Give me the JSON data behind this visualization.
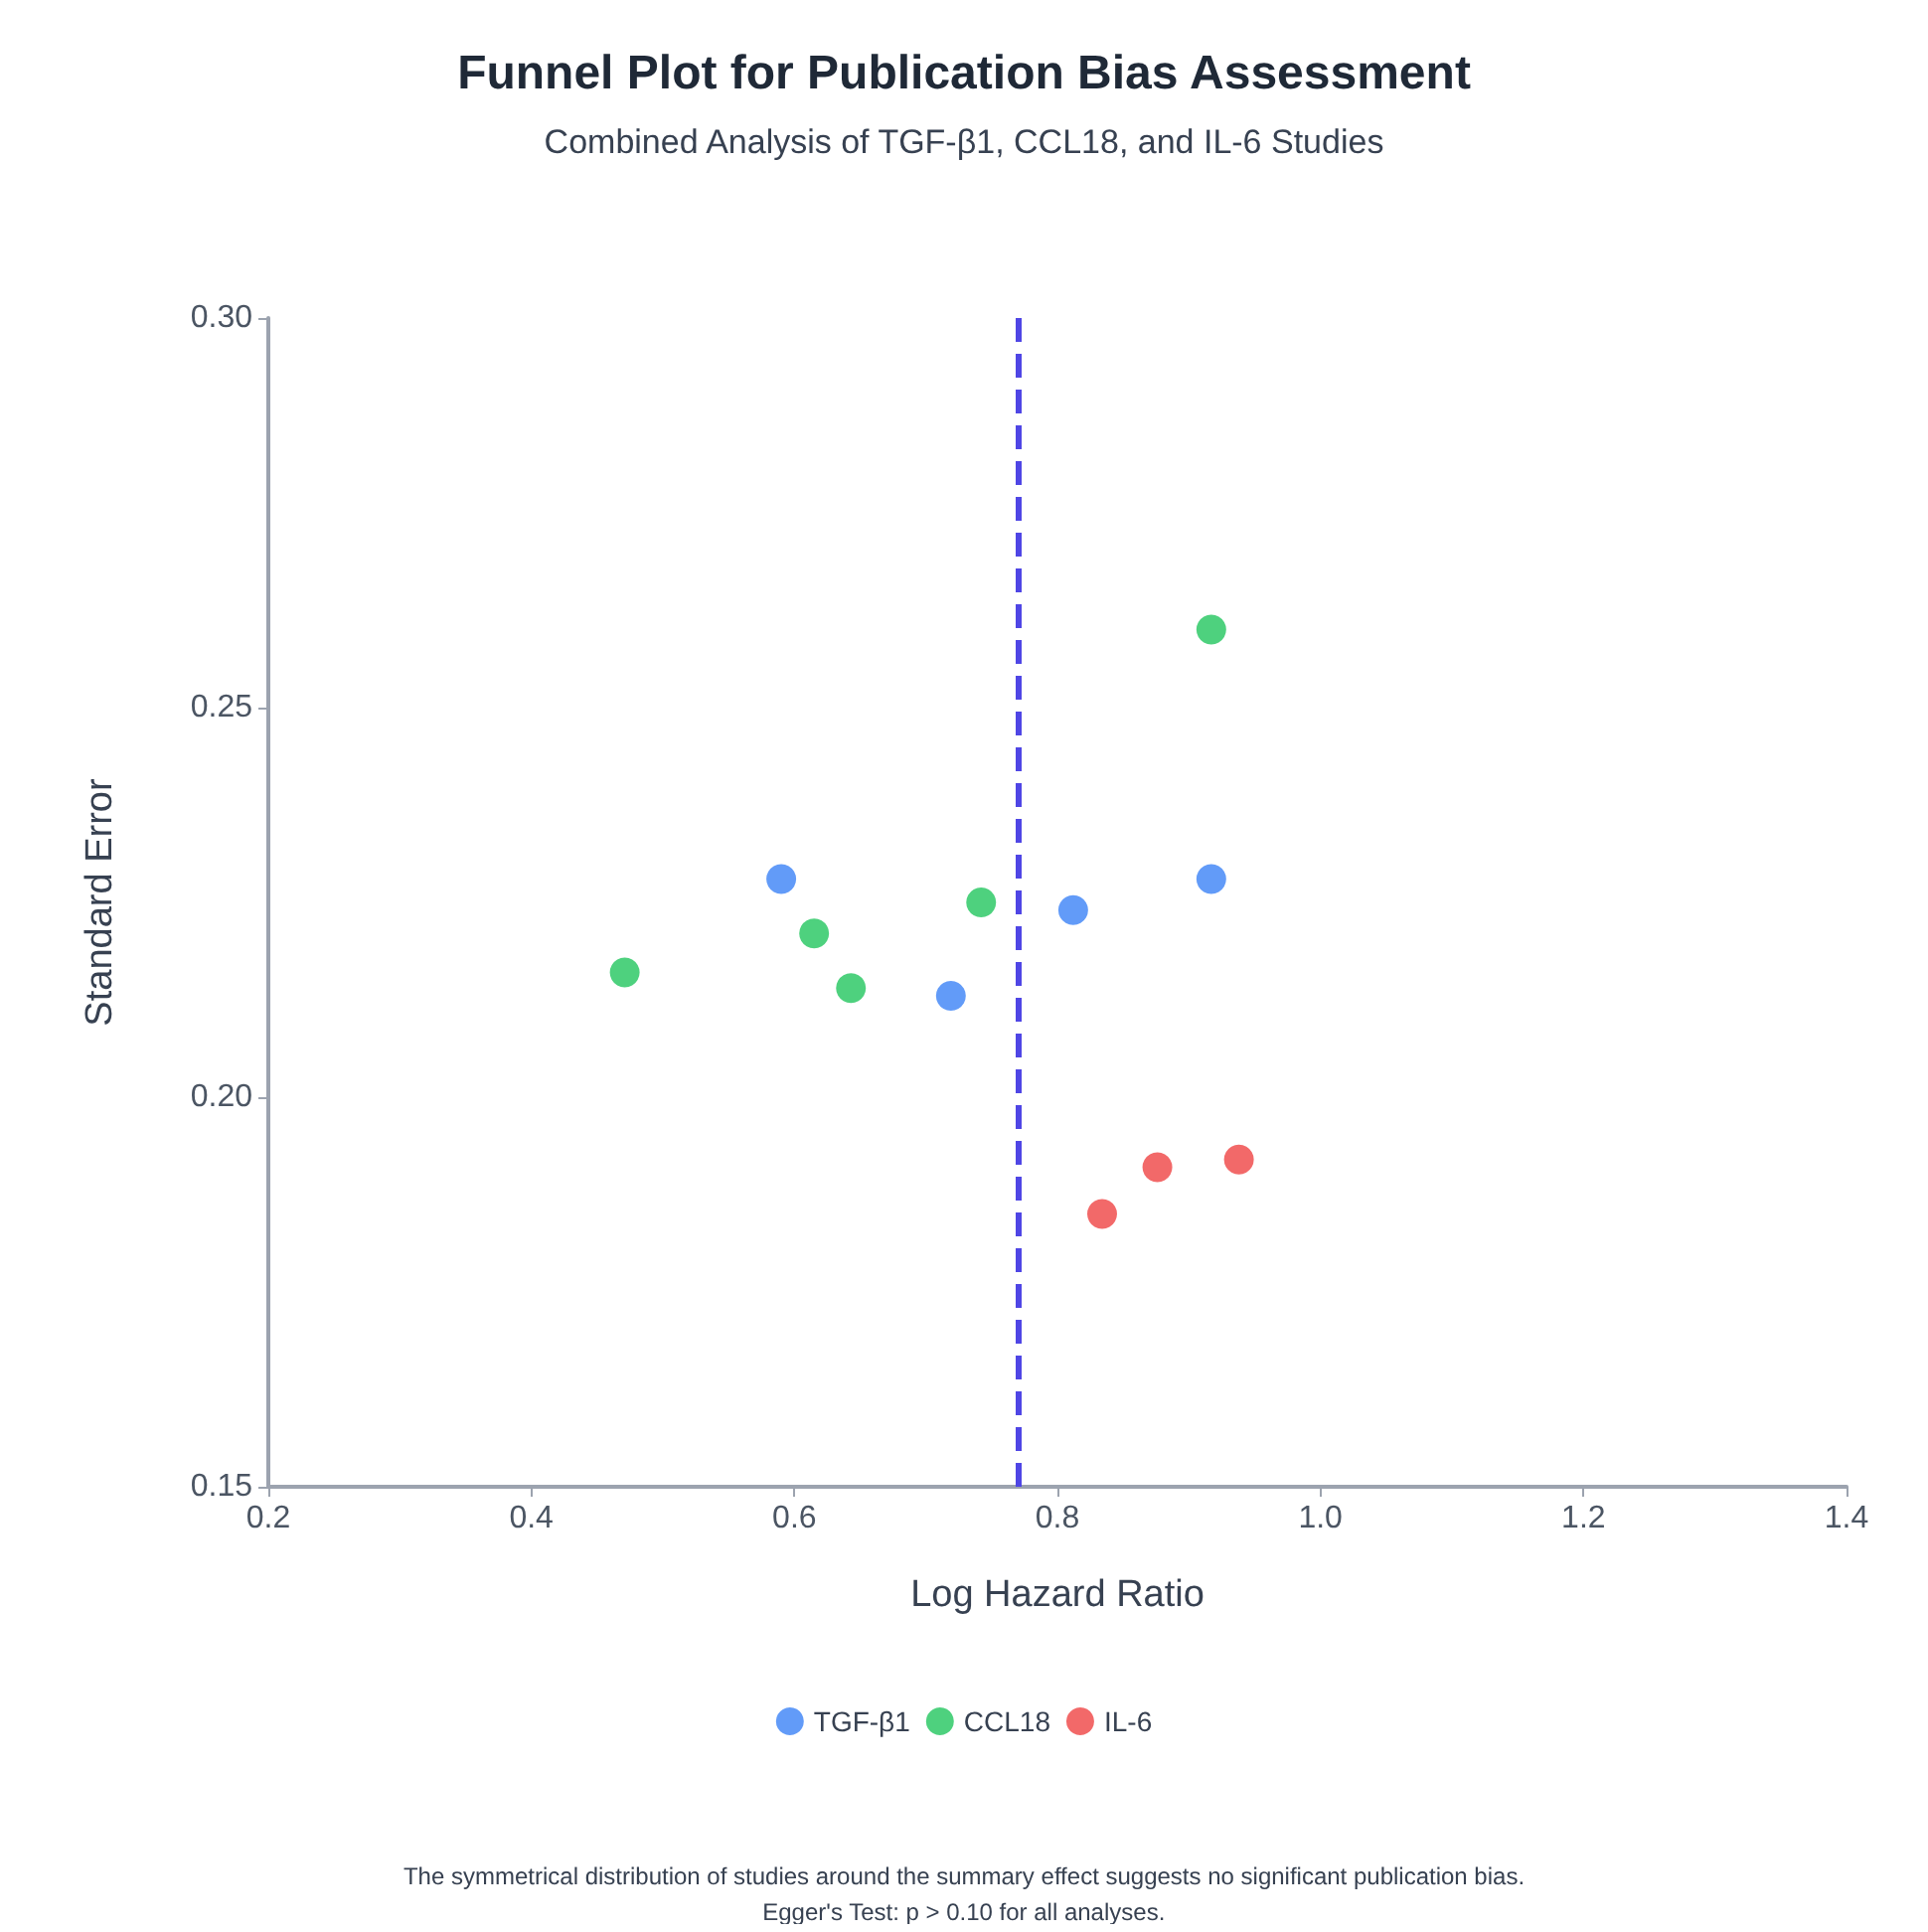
{
  "chart_data": {
    "type": "scatter",
    "title": "Funnel Plot for Publication Bias Assessment",
    "subtitle": "Combined Analysis of TGF-β1, CCL18, and IL-6 Studies",
    "xlabel": "Log Hazard Ratio",
    "ylabel": "Standard Error",
    "series": [
      {
        "name": "TGF-β1",
        "color": "#3b82f6",
        "x": [
          0.59,
          0.719,
          0.812,
          0.917
        ],
        "values": [
          0.228,
          0.213,
          0.224,
          0.228
        ]
      },
      {
        "name": "CCL18",
        "color": "#22c55e",
        "x": [
          0.471,
          0.615,
          0.643,
          0.742,
          0.917
        ],
        "values": [
          0.216,
          0.221,
          0.214,
          0.225,
          0.26
        ]
      },
      {
        "name": "IL-6",
        "color": "#ef4444",
        "x": [
          0.834,
          0.876,
          0.938
        ],
        "values": [
          0.185,
          0.191,
          0.192
        ]
      }
    ],
    "xlim": [
      0.2,
      1.4
    ],
    "xticks": [
      0.2,
      0.4,
      0.6,
      0.8,
      {
        "value": 1.0,
        "label": "1.0"
      },
      1.2,
      1.4
    ],
    "ylim": [
      0.15,
      0.3
    ],
    "yticks": [
      {
        "value": 0.15,
        "label": "0.15"
      },
      {
        "value": 0.2,
        "label": "0.20"
      },
      {
        "value": 0.25,
        "label": "0.25"
      },
      {
        "value": 0.3,
        "label": "0.30"
      }
    ],
    "ref_lines": [
      {
        "axis": "x",
        "value": 0.77,
        "color": "#4f46e5",
        "line_style": "dashed"
      }
    ],
    "grid": false,
    "legend": "bottom",
    "marker": "circle",
    "annotations": [
      "The symmetrical distribution of studies around the summary effect suggests no significant publication bias.",
      "Egger's Test: p > 0.10 for all analyses."
    ]
  }
}
